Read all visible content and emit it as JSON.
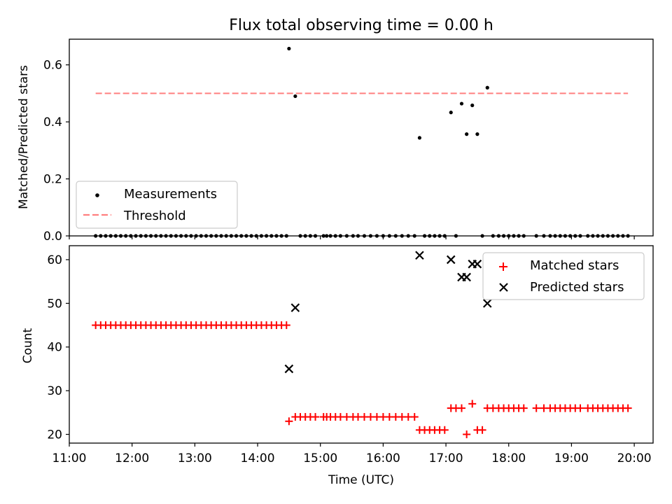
{
  "chart_data": [
    {
      "type": "scatter",
      "title": "Flux total observing time = 0.00 h",
      "xlabel": "",
      "ylabel": "Matched/Predicted stars",
      "xlim": [
        11.0,
        20.3
      ],
      "ylim": [
        0.0,
        0.69
      ],
      "yticks": [
        0.0,
        0.2,
        0.4,
        0.6
      ],
      "yticklabels": [
        "0.0",
        "0.2",
        "0.4",
        "0.6"
      ],
      "legend_position": "lower-left",
      "series": [
        {
          "name": "Measurements",
          "marker": "dot",
          "color": "#000000",
          "x": [
            11.42,
            11.5,
            11.58,
            11.66,
            11.74,
            11.82,
            11.9,
            11.98,
            12.06,
            12.14,
            12.22,
            12.3,
            12.38,
            12.46,
            12.54,
            12.62,
            12.7,
            12.78,
            12.86,
            12.94,
            13.02,
            13.1,
            13.18,
            13.26,
            13.34,
            13.42,
            13.5,
            13.58,
            13.66,
            13.74,
            13.82,
            13.9,
            13.98,
            14.06,
            14.14,
            14.22,
            14.3,
            14.38,
            14.46,
            14.5,
            14.6,
            14.68,
            14.76,
            14.84,
            14.92,
            15.05,
            15.1,
            15.16,
            15.24,
            15.32,
            15.42,
            15.52,
            15.6,
            15.7,
            15.8,
            15.9,
            16.0,
            16.1,
            16.2,
            16.3,
            16.4,
            16.5,
            16.58,
            16.66,
            16.74,
            16.82,
            16.9,
            16.98,
            17.08,
            17.16,
            17.25,
            17.33,
            17.42,
            17.5,
            17.58,
            17.66,
            17.75,
            17.84,
            17.92,
            18.0,
            18.08,
            18.16,
            18.24,
            18.44,
            18.56,
            18.66,
            18.74,
            18.82,
            18.9,
            18.98,
            19.06,
            19.14,
            19.26,
            19.34,
            19.42,
            19.5,
            19.58,
            19.66,
            19.74,
            19.82,
            19.9
          ],
          "y": [
            0,
            0,
            0,
            0,
            0,
            0,
            0,
            0,
            0,
            0,
            0,
            0,
            0,
            0,
            0,
            0,
            0,
            0,
            0,
            0,
            0,
            0,
            0,
            0,
            0,
            0,
            0,
            0,
            0,
            0,
            0,
            0,
            0,
            0,
            0,
            0,
            0,
            0,
            0,
            0.657,
            0.49,
            0,
            0,
            0,
            0,
            0,
            0,
            0,
            0,
            0,
            0,
            0,
            0,
            0,
            0,
            0,
            0,
            0,
            0,
            0,
            0,
            0,
            0.344,
            0,
            0,
            0,
            0,
            0,
            0.433,
            0,
            0.464,
            0.357,
            0.458,
            0.357,
            0,
            0.52,
            0,
            0,
            0,
            0,
            0,
            0,
            0,
            0,
            0,
            0,
            0,
            0,
            0,
            0,
            0,
            0,
            0,
            0,
            0,
            0,
            0,
            0,
            0,
            0,
            0
          ]
        },
        {
          "name": "Threshold",
          "type": "line",
          "style": "dashed",
          "color": "#ff7f7f",
          "x": [
            11.42,
            19.9
          ],
          "y": [
            0.5,
            0.5
          ]
        }
      ]
    },
    {
      "type": "scatter",
      "title": "",
      "xlabel": "Time (UTC)",
      "ylabel": "Count",
      "xlim": [
        11.0,
        20.3
      ],
      "ylim": [
        18,
        63.2
      ],
      "yticks": [
        20,
        30,
        40,
        50,
        60
      ],
      "yticklabels": [
        "20",
        "30",
        "40",
        "50",
        "60"
      ],
      "xticks": [
        11,
        12,
        13,
        14,
        15,
        16,
        17,
        18,
        19,
        20
      ],
      "xticklabels": [
        "11:00",
        "12:00",
        "13:00",
        "14:00",
        "15:00",
        "16:00",
        "17:00",
        "18:00",
        "19:00",
        "20:00"
      ],
      "legend_position": "upper-right",
      "series": [
        {
          "name": "Matched stars",
          "marker": "plus",
          "color": "#ff0000",
          "x": [
            11.42,
            11.5,
            11.58,
            11.66,
            11.74,
            11.82,
            11.9,
            11.98,
            12.06,
            12.14,
            12.22,
            12.3,
            12.38,
            12.46,
            12.54,
            12.62,
            12.7,
            12.78,
            12.86,
            12.94,
            13.02,
            13.1,
            13.18,
            13.26,
            13.34,
            13.42,
            13.5,
            13.58,
            13.66,
            13.74,
            13.82,
            13.9,
            13.98,
            14.06,
            14.14,
            14.22,
            14.3,
            14.38,
            14.46,
            14.5,
            14.6,
            14.68,
            14.76,
            14.84,
            14.92,
            15.05,
            15.1,
            15.16,
            15.24,
            15.32,
            15.42,
            15.52,
            15.6,
            15.7,
            15.8,
            15.9,
            16.0,
            16.1,
            16.2,
            16.3,
            16.4,
            16.5,
            16.58,
            16.66,
            16.74,
            16.82,
            16.9,
            16.98,
            17.08,
            17.16,
            17.25,
            17.33,
            17.42,
            17.5,
            17.58,
            17.66,
            17.75,
            17.84,
            17.92,
            18.0,
            18.08,
            18.16,
            18.24,
            18.44,
            18.56,
            18.66,
            18.74,
            18.82,
            18.9,
            18.98,
            19.06,
            19.14,
            19.26,
            19.34,
            19.42,
            19.5,
            19.58,
            19.66,
            19.74,
            19.82,
            19.9
          ],
          "y": [
            45,
            45,
            45,
            45,
            45,
            45,
            45,
            45,
            45,
            45,
            45,
            45,
            45,
            45,
            45,
            45,
            45,
            45,
            45,
            45,
            45,
            45,
            45,
            45,
            45,
            45,
            45,
            45,
            45,
            45,
            45,
            45,
            45,
            45,
            45,
            45,
            45,
            45,
            45,
            23,
            24,
            24,
            24,
            24,
            24,
            24,
            24,
            24,
            24,
            24,
            24,
            24,
            24,
            24,
            24,
            24,
            24,
            24,
            24,
            24,
            24,
            24,
            21,
            21,
            21,
            21,
            21,
            21,
            26,
            26,
            26,
            20,
            27,
            21,
            21,
            26,
            26,
            26,
            26,
            26,
            26,
            26,
            26,
            26,
            26,
            26,
            26,
            26,
            26,
            26,
            26,
            26,
            26,
            26,
            26,
            26,
            26,
            26,
            26,
            26,
            26
          ]
        },
        {
          "name": "Predicted stars",
          "marker": "x",
          "color": "#000000",
          "x": [
            14.5,
            14.6,
            16.58,
            17.08,
            17.25,
            17.33,
            17.42,
            17.5,
            17.66
          ],
          "y": [
            35,
            49,
            61,
            60,
            56,
            56,
            59,
            59,
            50
          ]
        }
      ]
    }
  ]
}
